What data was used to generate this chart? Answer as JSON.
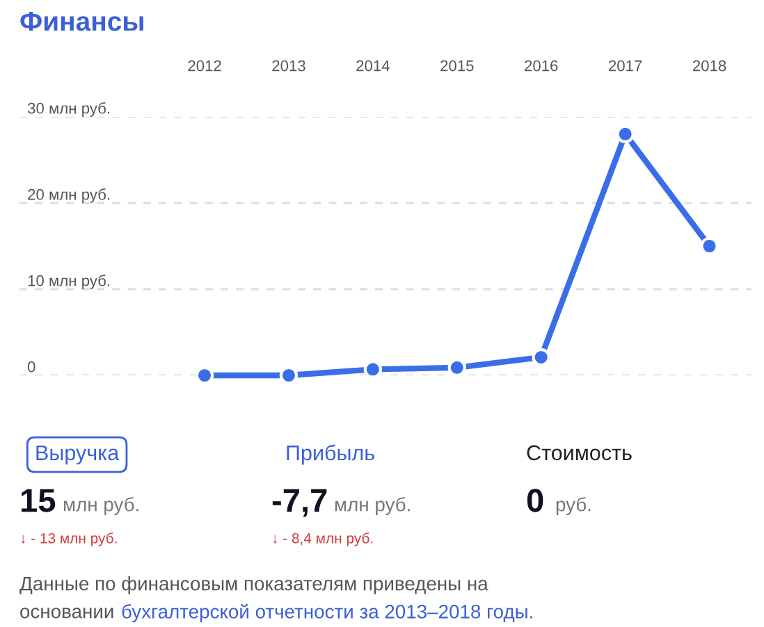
{
  "chart_data": {
    "type": "line",
    "title": "Финансы",
    "categories": [
      "2012",
      "2013",
      "2014",
      "2015",
      "2016",
      "2017",
      "2018"
    ],
    "series": [
      {
        "color": "#3a6ee8",
        "values": [
          0,
          0,
          0.7,
          0.9,
          2.1,
          28,
          15
        ]
      }
    ],
    "ylim": [
      0,
      30
    ],
    "yticks": [
      0,
      {
        "value": 10,
        "label": "10 млн руб."
      },
      {
        "value": 20,
        "label": "20 млн руб."
      },
      {
        "value": 30,
        "label": "30 млн руб."
      }
    ],
    "grid": "y",
    "marker": "circle",
    "line_style": "solid",
    "annotations": [
      "Выручка",
      "Прибыль",
      "Стоимость",
      "15",
      "млн руб.",
      "-7,7",
      "млн руб.",
      "0",
      "руб.",
      "↓ - 13 млн руб.",
      "↓ - 8,4 млн руб.",
      "Данные по финансовым показателям приведены на",
      "основании",
      "бухгалтерской отчетности за 2013–2018 годы."
    ]
  }
}
